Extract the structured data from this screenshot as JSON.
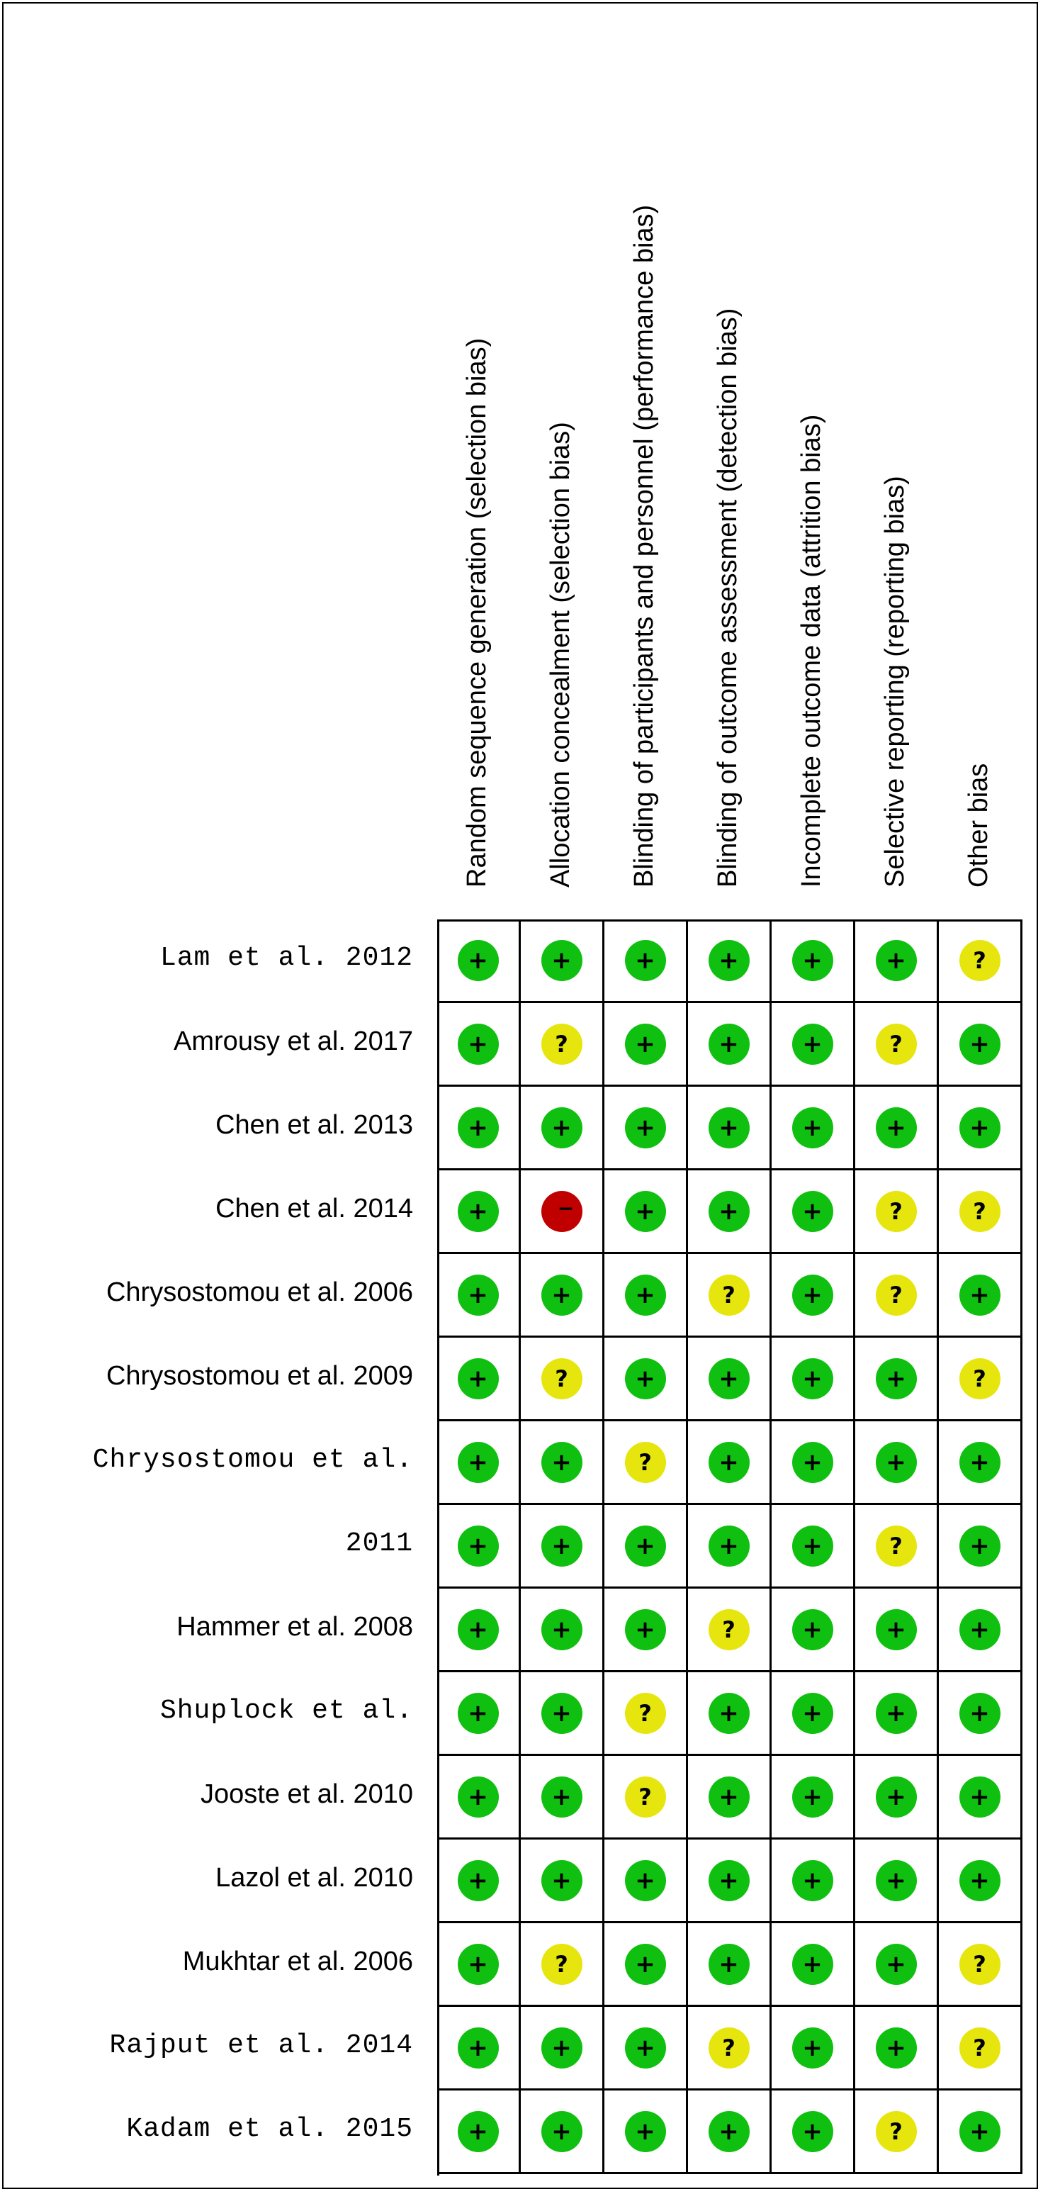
{
  "columns": [
    "Random sequence generation (selection bias)",
    "Allocation concealment (selection bias)",
    "Blinding of participants and personnel (performance bias)",
    "Blinding of outcome assessment (detection bias)",
    "Incomplete outcome data (attrition bias)",
    "Selective reporting (reporting bias)",
    "Other bias"
  ],
  "legend_symbols": {
    "low": "+",
    "unclear": "?",
    "high": "−"
  },
  "colors": {
    "low": "#10c010",
    "unclear": "#e6e60e",
    "high": "#c00000"
  },
  "rows": [
    {
      "label": "Lam et al. 2012",
      "font": "mono",
      "ratings": [
        "low",
        "low",
        "low",
        "low",
        "low",
        "low",
        "unclear"
      ]
    },
    {
      "label": "Amrousy et al. 2017",
      "font": "sans",
      "ratings": [
        "low",
        "unclear",
        "low",
        "low",
        "low",
        "unclear",
        "low"
      ]
    },
    {
      "label": "Chen et al. 2013",
      "font": "sans",
      "ratings": [
        "low",
        "low",
        "low",
        "low",
        "low",
        "low",
        "low"
      ]
    },
    {
      "label": "Chen et al. 2014",
      "font": "sans",
      "ratings": [
        "low",
        "high",
        "low",
        "low",
        "low",
        "unclear",
        "unclear"
      ]
    },
    {
      "label": "Chrysostomou et al. 2006",
      "font": "sans",
      "ratings": [
        "low",
        "low",
        "low",
        "unclear",
        "low",
        "unclear",
        "low"
      ]
    },
    {
      "label": "Chrysostomou et al. 2009",
      "font": "sans",
      "ratings": [
        "low",
        "unclear",
        "low",
        "low",
        "low",
        "low",
        "unclear"
      ]
    },
    {
      "label": "Chrysostomou et al.",
      "font": "mono",
      "ratings": [
        "low",
        "low",
        "unclear",
        "low",
        "low",
        "low",
        "low"
      ]
    },
    {
      "label": "2011",
      "font": "mono",
      "ratings": [
        "low",
        "low",
        "low",
        "low",
        "low",
        "unclear",
        "low"
      ]
    },
    {
      "label": "Hammer et al. 2008",
      "font": "sans",
      "ratings": [
        "low",
        "low",
        "low",
        "unclear",
        "low",
        "low",
        "low"
      ]
    },
    {
      "label": "Shuplock  et  al.",
      "font": "mono",
      "ratings": [
        "low",
        "low",
        "unclear",
        "low",
        "low",
        "low",
        "low"
      ]
    },
    {
      "label": "Jooste et al. 2010",
      "font": "sans",
      "ratings": [
        "low",
        "low",
        "unclear",
        "low",
        "low",
        "low",
        "low"
      ]
    },
    {
      "label": "Lazol et al. 2010",
      "font": "sans",
      "ratings": [
        "low",
        "low",
        "low",
        "low",
        "low",
        "low",
        "low"
      ]
    },
    {
      "label": "Mukhtar et al. 2006",
      "font": "sans",
      "ratings": [
        "low",
        "unclear",
        "low",
        "low",
        "low",
        "low",
        "unclear"
      ]
    },
    {
      "label": "Rajput et al. 2014",
      "font": "mono",
      "ratings": [
        "low",
        "low",
        "low",
        "unclear",
        "low",
        "low",
        "unclear"
      ]
    },
    {
      "label": "Kadam et al. 2015",
      "font": "mono",
      "ratings": [
        "low",
        "low",
        "low",
        "low",
        "low",
        "unclear",
        "low"
      ]
    }
  ]
}
